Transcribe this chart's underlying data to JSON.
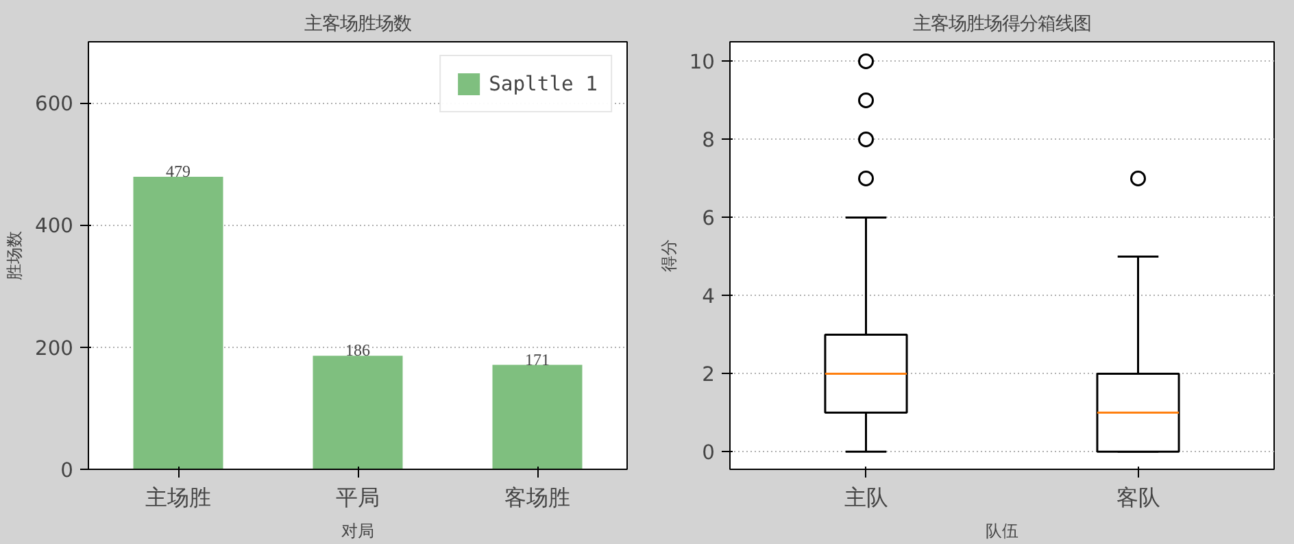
{
  "chart_data": [
    {
      "type": "bar",
      "title": "主客场胜场数",
      "xlabel": "对局",
      "ylabel": "胜场数",
      "categories": [
        "主场胜",
        "平局",
        "客场胜"
      ],
      "series": [
        {
          "name": "Sapltle 1",
          "color": "#7fbf7f",
          "values": [
            479,
            186,
            171
          ]
        }
      ],
      "ylim": [
        0,
        700
      ],
      "yticks": [
        0,
        200,
        400,
        600
      ],
      "grid": "y",
      "legend": "top right",
      "data_labels": true
    },
    {
      "type": "box",
      "title": "主客场胜场得分箱线图",
      "xlabel": "队伍",
      "ylabel": "得分",
      "categories": [
        "主队",
        "客队"
      ],
      "boxes": [
        {
          "low": 0,
          "q1": 1,
          "median": 2,
          "q3": 3,
          "high": 6,
          "outliers": [
            7,
            8,
            9,
            10
          ]
        },
        {
          "low": 0,
          "q1": 0,
          "median": 1,
          "q3": 2,
          "high": 5,
          "outliers": [
            7
          ]
        }
      ],
      "ylim": [
        -0.45,
        10.5
      ],
      "yticks": [
        0,
        2,
        4,
        6,
        8,
        10
      ],
      "grid": "y"
    }
  ]
}
